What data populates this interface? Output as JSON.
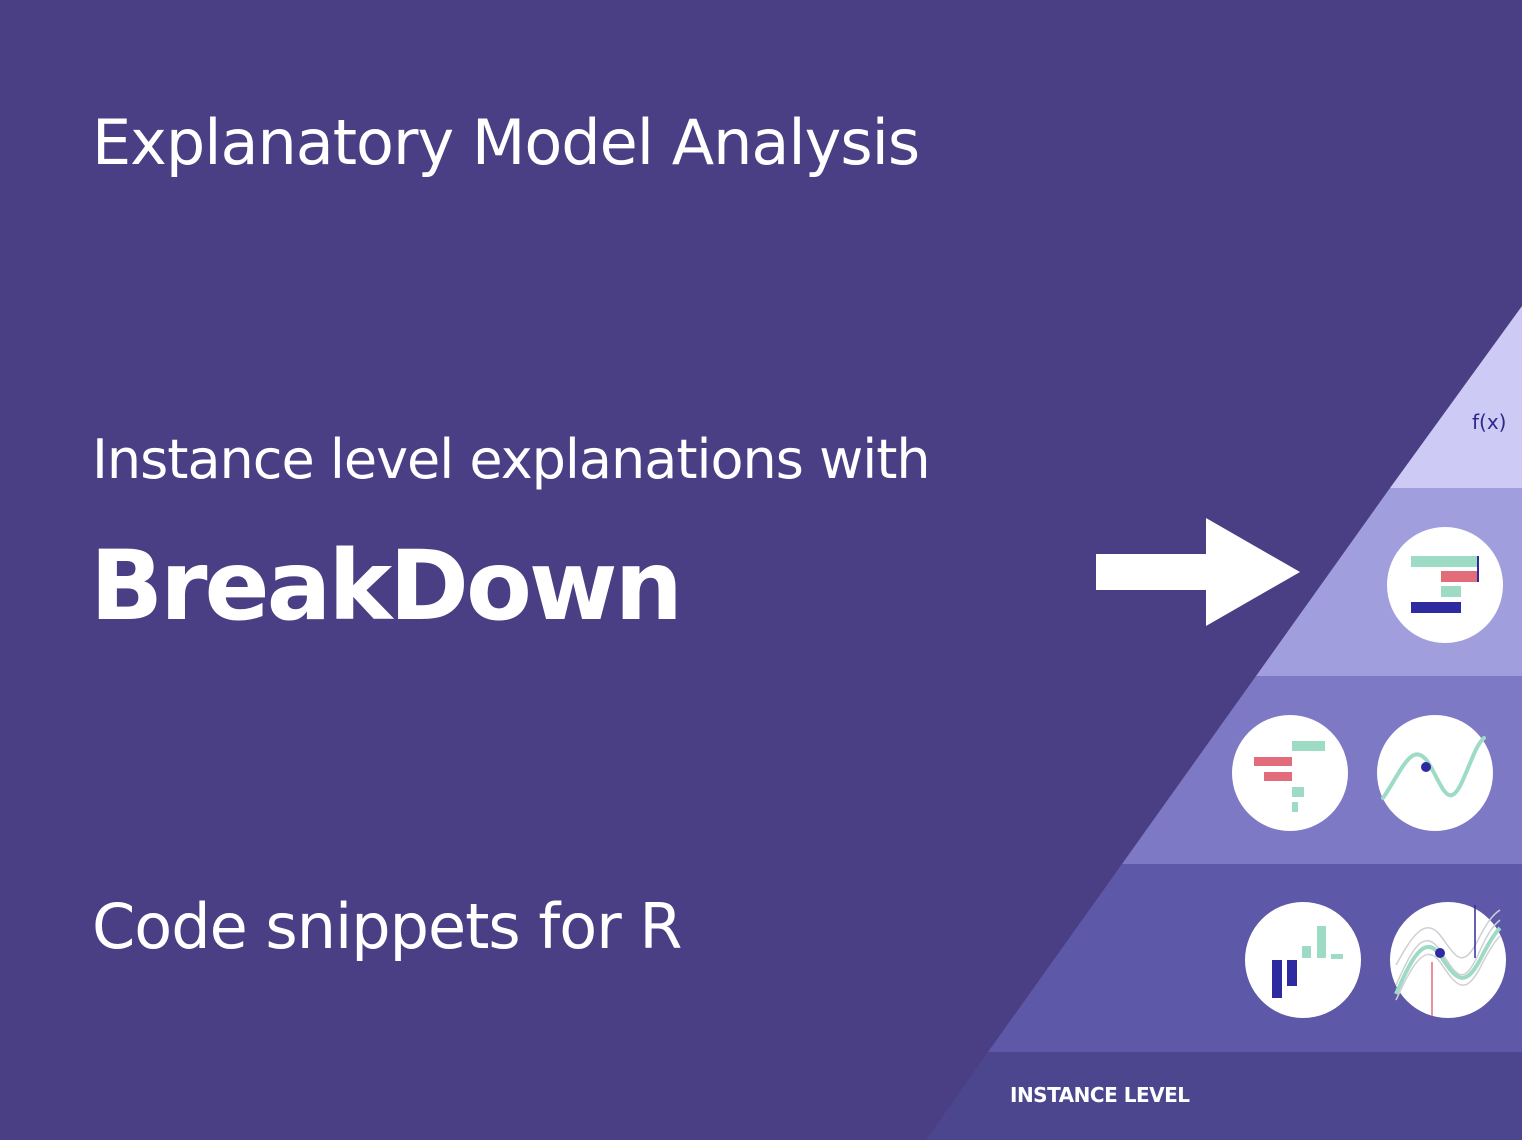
{
  "title": "Explanatory Model Analysis",
  "subtitle": "Instance level explanations with",
  "headline": "BreakDown",
  "code_line": "Code snippets for R",
  "pyramid": {
    "top_label": "f(x)",
    "bottom_label": "INSTANCE LEVEL",
    "icons": [
      "break-down-icon",
      "shap-icon",
      "ceteris-paribus-icon",
      "variable-importance-icon",
      "ceteris-paribus-profiles-icon"
    ]
  },
  "colors": {
    "background": "#4a3f84",
    "tier_top": "#cdcaf5",
    "tier_2": "#a19edd",
    "tier_3": "#7e79c4",
    "tier_4": "#5e58a8",
    "tier_base": "#4c468f",
    "accent_green": "#9edbc5",
    "accent_red": "#e36c7a",
    "accent_navy": "#2e2ba0"
  }
}
